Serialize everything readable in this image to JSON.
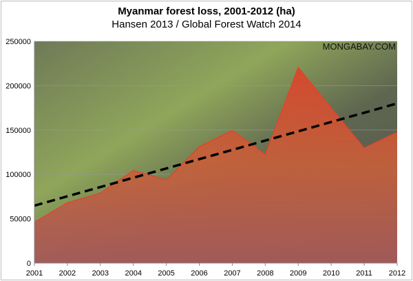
{
  "chart_data": {
    "type": "area",
    "title": "Myanmar forest loss, 2001-2012 (ha)",
    "subtitle": "Hansen 2013 / Global Forest Watch 2014",
    "watermark": "MONGABAY.COM",
    "xlabel": "",
    "ylabel": "",
    "x": [
      "2001",
      "2002",
      "2003",
      "2004",
      "2005",
      "2006",
      "2007",
      "2008",
      "2009",
      "2010",
      "2011",
      "2012"
    ],
    "series": [
      {
        "name": "Forest loss (ha)",
        "values": [
          46200,
          68100,
          79000,
          104400,
          93800,
          131300,
          149700,
          122500,
          220700,
          175000,
          129800,
          147700
        ],
        "color": "#e8402a"
      },
      {
        "name": "Linear trend",
        "values_endpoints": [
          64800,
          180000
        ],
        "style": "dashed",
        "color": "#000000"
      }
    ],
    "ylim": [
      0,
      250000
    ],
    "yticks": [
      "0",
      "50000",
      "100000",
      "150000",
      "200000",
      "250000"
    ],
    "grid": true,
    "legend": "none"
  }
}
